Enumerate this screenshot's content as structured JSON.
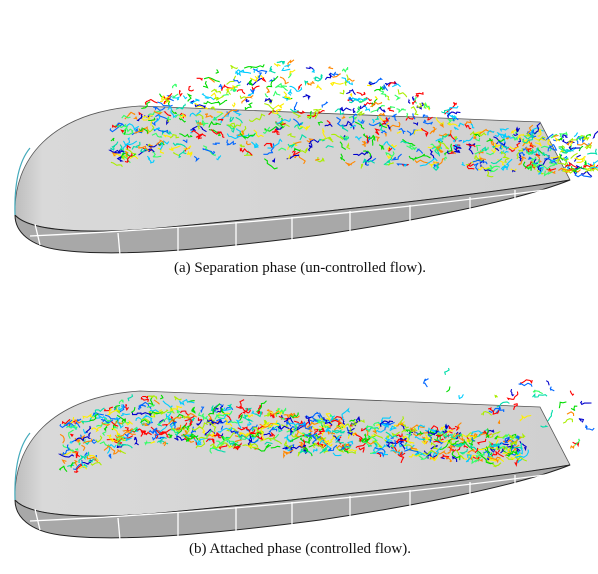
{
  "figures": [
    {
      "caption": "(a) Separation phase (un-controlled flow)."
    },
    {
      "caption": "(b) Attached phase (controlled flow)."
    }
  ]
}
